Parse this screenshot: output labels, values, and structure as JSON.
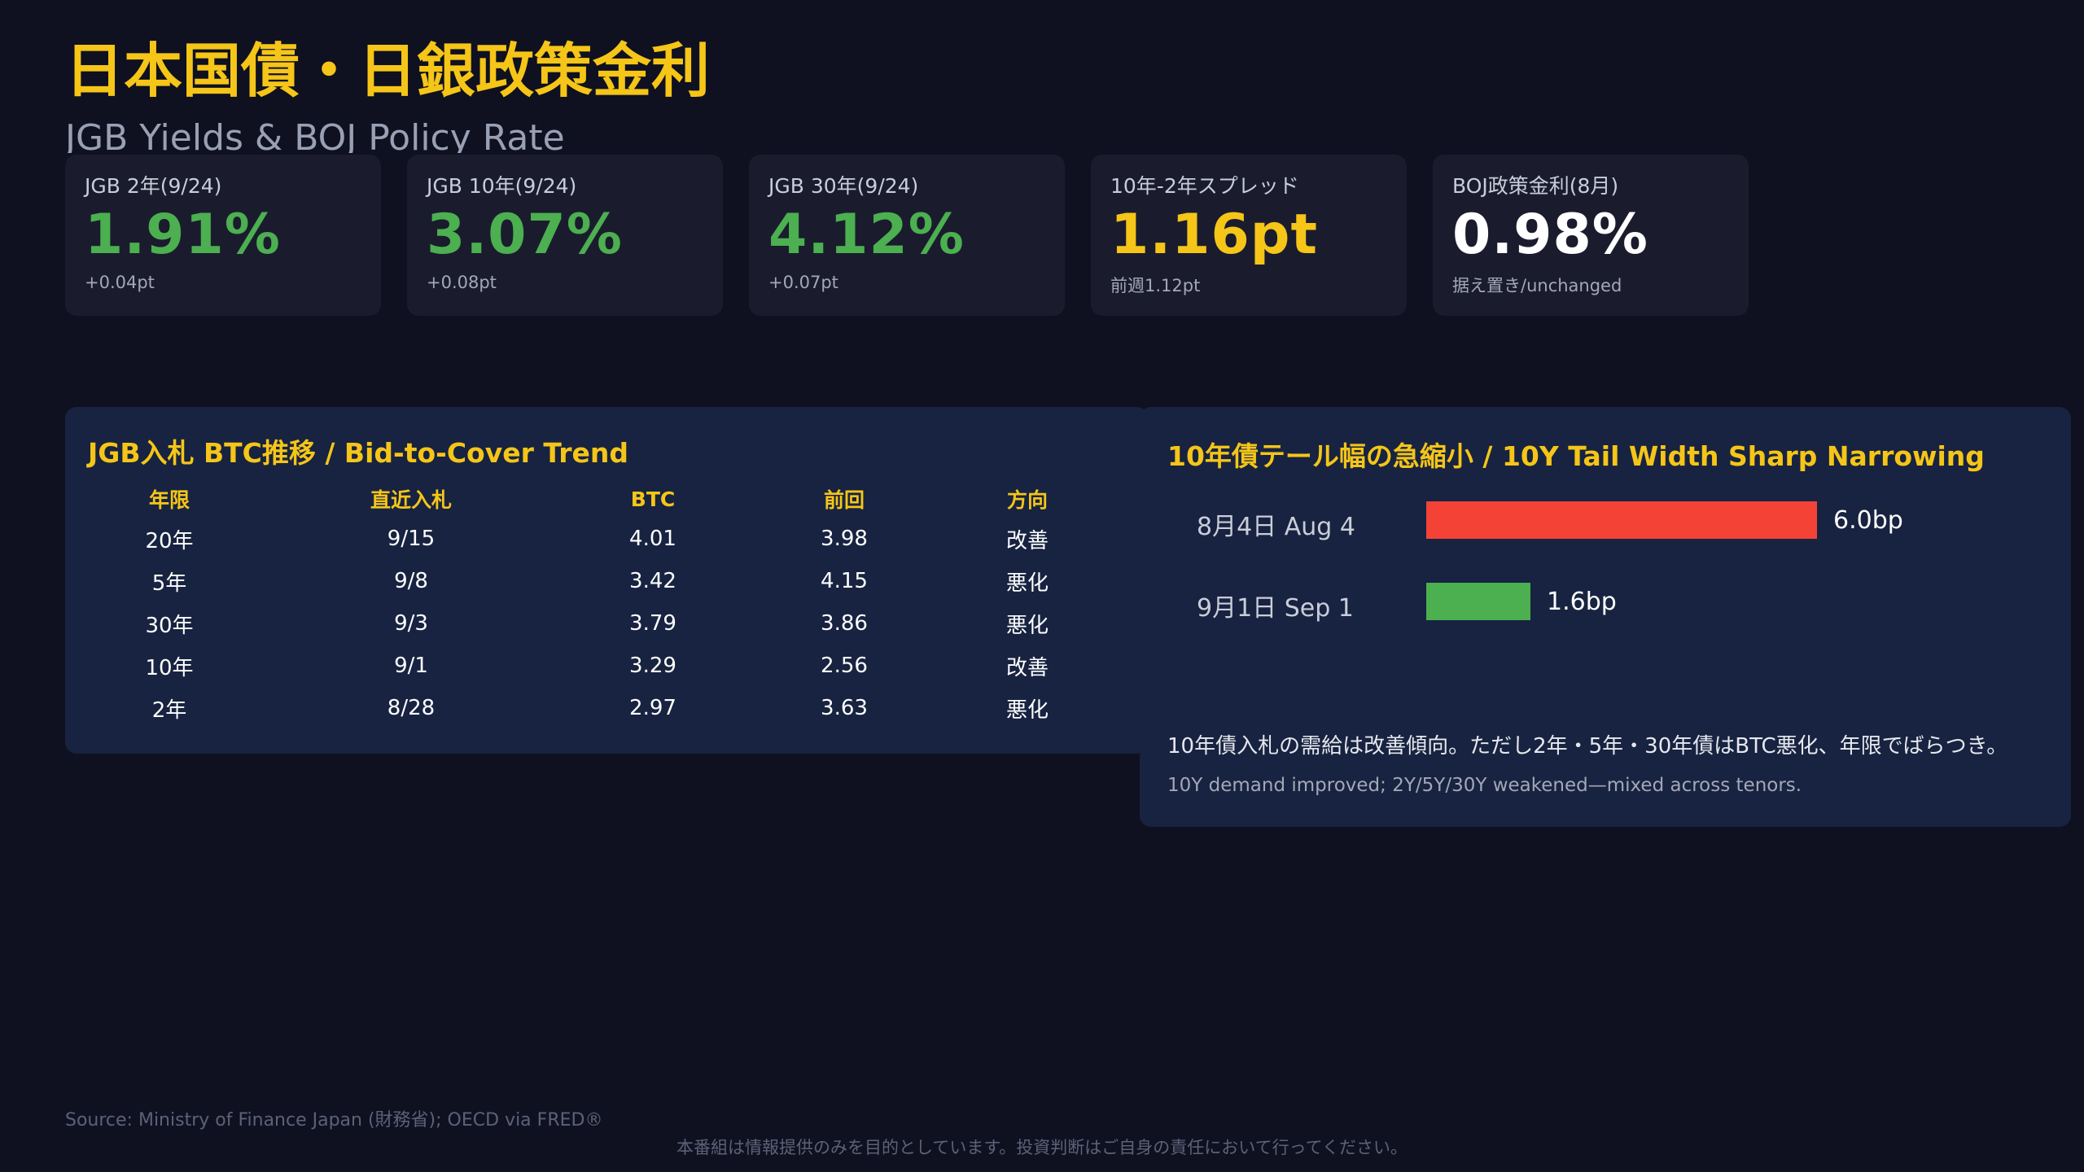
{
  "header": {
    "title": "日本国債・日銀政策金利",
    "subtitle": "JGB Yields & BOJ Policy Rate"
  },
  "kpis": [
    {
      "label": "JGB 2年(9/24)",
      "value": "1.91%",
      "sub": "+0.04pt",
      "color": "#4caf50"
    },
    {
      "label": "JGB 10年(9/24)",
      "value": "3.07%",
      "sub": "+0.08pt",
      "color": "#4caf50"
    },
    {
      "label": "JGB 30年(9/24)",
      "value": "4.12%",
      "sub": "+0.07pt",
      "color": "#4caf50"
    },
    {
      "label": "10年-2年スプレッド",
      "value": "1.16pt",
      "sub": "前週1.12pt",
      "color": "#f5c518"
    },
    {
      "label": "BOJ政策金利(8月)",
      "value": "0.98%",
      "sub": "据え置き/unchanged",
      "color": "#ffffff"
    }
  ],
  "btc_panel": {
    "title": "JGB入札 BTC推移 / Bid-to-Cover Trend",
    "headers": [
      "年限",
      "直近入札",
      "BTC",
      "前回",
      "方向"
    ],
    "rows": [
      {
        "tenor": "20年",
        "date": "9/15",
        "btc": "4.01",
        "prev": "3.98",
        "dir": "改善",
        "trend": "up"
      },
      {
        "tenor": "5年",
        "date": "9/8",
        "btc": "3.42",
        "prev": "4.15",
        "dir": "悪化",
        "trend": "down"
      },
      {
        "tenor": "30年",
        "date": "9/3",
        "btc": "3.79",
        "prev": "3.86",
        "dir": "悪化",
        "trend": "down"
      },
      {
        "tenor": "10年",
        "date": "9/1",
        "btc": "3.29",
        "prev": "2.56",
        "dir": "改善",
        "trend": "up"
      },
      {
        "tenor": "2年",
        "date": "8/28",
        "btc": "2.97",
        "prev": "3.63",
        "dir": "悪化",
        "trend": "down"
      }
    ]
  },
  "tail_panel": {
    "title": "10年債テール幅の急縮小 / 10Y Tail Width Sharp Narrowing",
    "bars": [
      {
        "label": "8月4日 Aug 4",
        "value": 6.0,
        "value_text": "6.0bp",
        "color": "#f44336"
      },
      {
        "label": "9月1日 Sep 1",
        "value": 1.6,
        "value_text": "1.6bp",
        "color": "#4caf50"
      }
    ],
    "note_ja": "10年債入札の需給は改善傾向。ただし2年・5年・30年債はBTC悪化、年限でばらつき。",
    "note_en": "10Y demand improved; 2Y/5Y/30Y weakened—mixed across tenors."
  },
  "footer": {
    "source": "Source: Ministry of Finance Japan (財務省); OECD via FRED®",
    "disclaimer": "本番組は情報提供のみを目的としています。投資判断はご自身の責任において行ってください。"
  }
}
